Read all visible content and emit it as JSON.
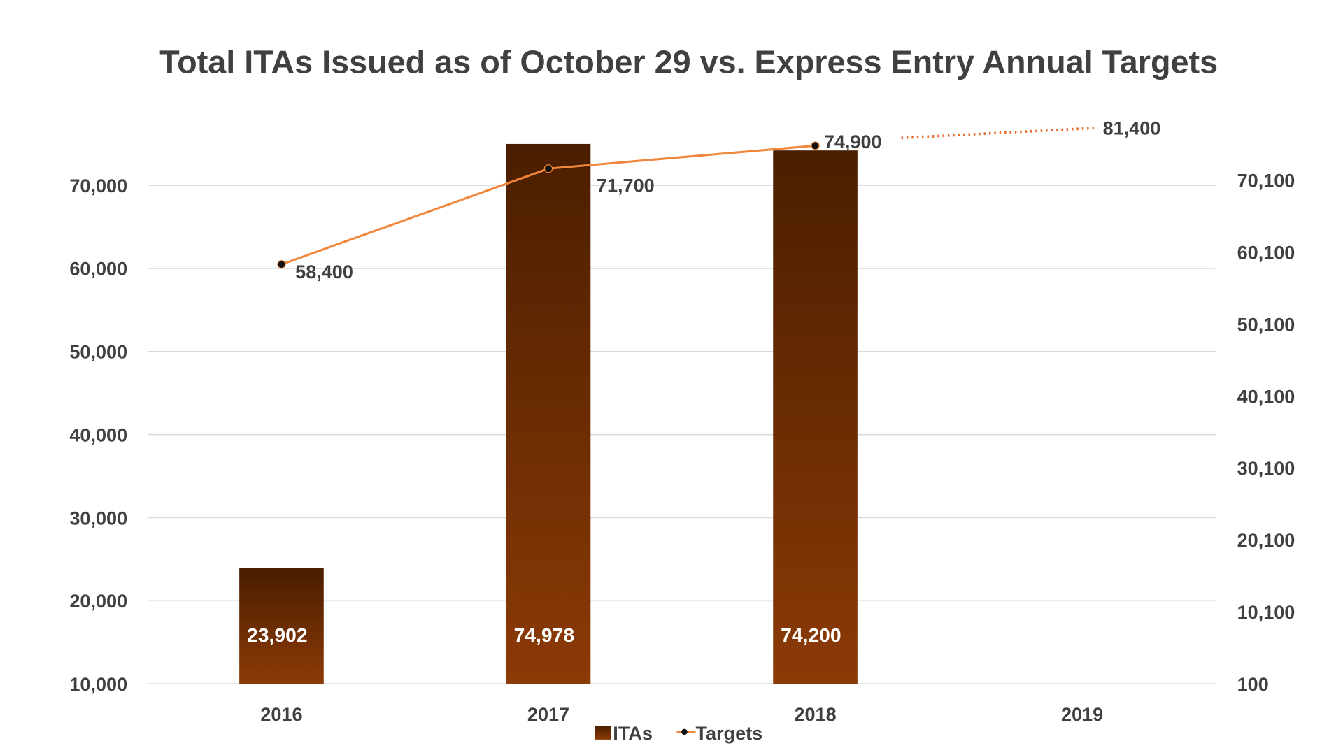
{
  "chart_data": {
    "type": "bar+line",
    "title": "Total ITAs Issued as of October 29 vs. Express Entry Annual Targets",
    "categories": [
      "2016",
      "2017",
      "2018",
      "2019"
    ],
    "series": [
      {
        "name": "ITAs",
        "type": "bar",
        "axis": "left",
        "values": [
          23902,
          74978,
          74200,
          null
        ],
        "labels": [
          "23,902",
          "74,978",
          "74,200",
          ""
        ]
      },
      {
        "name": "Targets",
        "type": "line",
        "axis": "right",
        "values": [
          58400,
          71700,
          74900,
          81400
        ],
        "labels": [
          "58,400",
          "71,700",
          "74,900",
          "81,400"
        ],
        "dotted_last_segment": true
      }
    ],
    "left_axis": {
      "ylim": [
        10000,
        70000
      ],
      "ticks": [
        "10,000",
        "20,000",
        "30,000",
        "40,000",
        "50,000",
        "60,000",
        "70,000"
      ]
    },
    "right_axis": {
      "ylim": [
        100,
        70100
      ],
      "ticks": [
        "100",
        "10,100",
        "20,100",
        "30,100",
        "40,100",
        "50,100",
        "60,100",
        "70,100"
      ]
    },
    "grid": true,
    "legend": {
      "placement": "bottom",
      "entries": [
        "ITAs",
        "Targets"
      ]
    },
    "colors": {
      "bar_top": "#4a1e00",
      "bar_bottom": "#8c3a06",
      "line": "#f0873a",
      "dotted": "#e8692a",
      "marker": "#111111"
    }
  }
}
